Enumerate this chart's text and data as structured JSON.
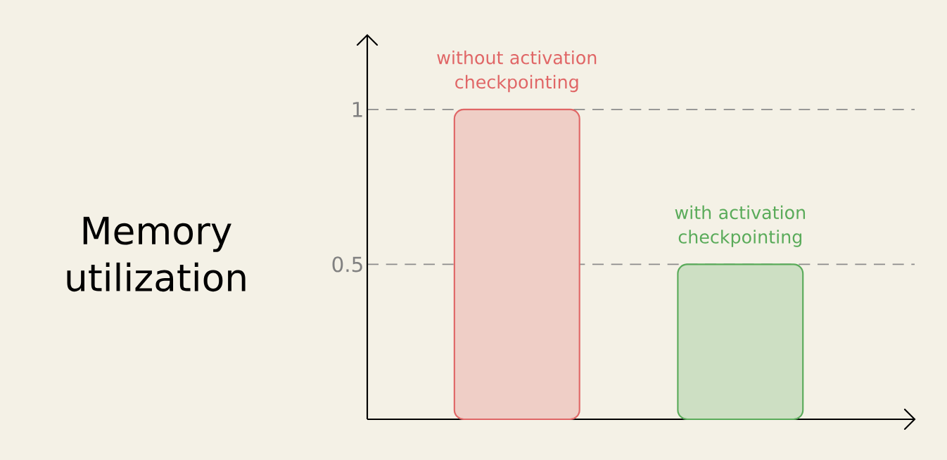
{
  "chart_data": {
    "type": "bar",
    "annotations": [
      "Memory utilization"
    ],
    "categories": [
      "without activation checkpointing",
      "with activation checkpointing"
    ],
    "values": [
      1,
      0.5
    ],
    "colors": [
      "#e06666",
      "#5aab5a"
    ],
    "ylim": [
      0,
      1.24
    ],
    "yticks": [
      0.5,
      1
    ],
    "grid": "y"
  }
}
